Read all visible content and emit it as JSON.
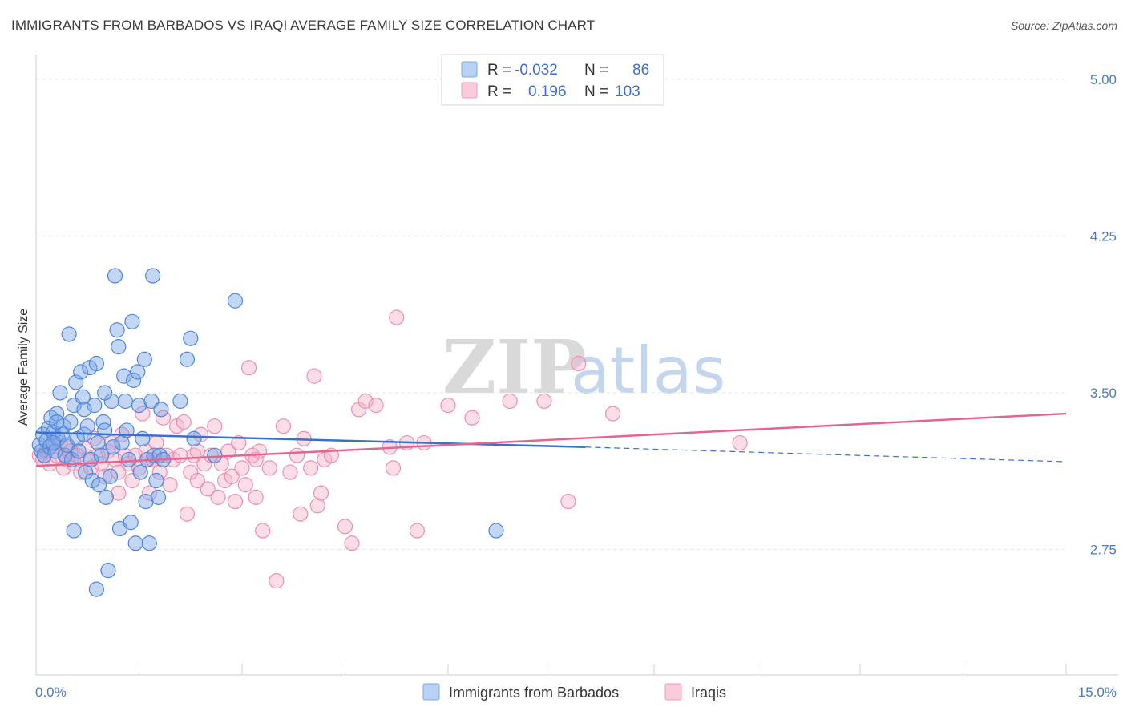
{
  "header": {
    "title": "IMMIGRANTS FROM BARBADOS VS IRAQI AVERAGE FAMILY SIZE CORRELATION CHART",
    "source": "Source: ZipAtlas.com"
  },
  "watermark": {
    "part1": "ZIP",
    "part2": "atlas"
  },
  "legend": {
    "rows": [
      {
        "r_label": "R =",
        "r_value": "-0.032",
        "n_label": "N =",
        "n_value": "86",
        "color": "#7aa7e6"
      },
      {
        "r_label": "R =",
        "r_value": "0.196",
        "n_label": "N =",
        "n_value": "103",
        "color": "#f29ab8"
      }
    ]
  },
  "chart_data": {
    "type": "scatter",
    "ylabel": "Average Family Size",
    "xlim": [
      0,
      15
    ],
    "ylim": [
      2.15,
      5.08
    ],
    "x_tick_labels": [
      "0.0%",
      "15.0%"
    ],
    "y_ticks": [
      2.75,
      3.5,
      4.25,
      5.0
    ],
    "y_tick_labels": [
      "2.75",
      "3.50",
      "4.25",
      "5.00"
    ],
    "grid": true,
    "legend_position": "top-center",
    "series": [
      {
        "name": "Immigrants from Barbados",
        "color": "#7aa7e6",
        "stroke": "#4f86d9",
        "trend": {
          "x0": 0.0,
          "y0": 3.31,
          "x1": 8.0,
          "y1": 3.24,
          "dash_x1": 15.0,
          "dash_y1": 3.17,
          "color": "#3a6fd0"
        },
        "points": [
          [
            0.05,
            3.25
          ],
          [
            0.08,
            3.22
          ],
          [
            0.1,
            3.3
          ],
          [
            0.12,
            3.2
          ],
          [
            0.15,
            3.27
          ],
          [
            0.18,
            3.33
          ],
          [
            0.2,
            3.24
          ],
          [
            0.22,
            3.38
          ],
          [
            0.25,
            3.31
          ],
          [
            0.28,
            3.22
          ],
          [
            0.3,
            3.4
          ],
          [
            0.32,
            3.28
          ],
          [
            0.35,
            3.5
          ],
          [
            0.38,
            3.3
          ],
          [
            0.4,
            3.34
          ],
          [
            0.42,
            3.2
          ],
          [
            0.45,
            3.25
          ],
          [
            0.48,
            3.78
          ],
          [
            0.5,
            3.36
          ],
          [
            0.52,
            3.18
          ],
          [
            0.55,
            3.44
          ],
          [
            0.58,
            3.55
          ],
          [
            0.6,
            3.28
          ],
          [
            0.62,
            3.22
          ],
          [
            0.65,
            3.6
          ],
          [
            0.68,
            3.48
          ],
          [
            0.7,
            3.3
          ],
          [
            0.72,
            3.12
          ],
          [
            0.75,
            3.34
          ],
          [
            0.78,
            3.62
          ],
          [
            0.8,
            3.18
          ],
          [
            0.82,
            3.08
          ],
          [
            0.85,
            3.44
          ],
          [
            0.88,
            3.64
          ],
          [
            0.9,
            3.26
          ],
          [
            0.92,
            3.06
          ],
          [
            0.95,
            3.2
          ],
          [
            0.98,
            3.36
          ],
          [
            1.0,
            3.32
          ],
          [
            1.02,
            3.0
          ],
          [
            1.05,
            2.65
          ],
          [
            1.08,
            3.1
          ],
          [
            1.1,
            3.46
          ],
          [
            1.12,
            3.24
          ],
          [
            1.15,
            4.06
          ],
          [
            1.18,
            3.8
          ],
          [
            1.2,
            3.72
          ],
          [
            1.22,
            2.85
          ],
          [
            1.25,
            3.26
          ],
          [
            1.28,
            3.58
          ],
          [
            1.3,
            3.46
          ],
          [
            1.32,
            3.32
          ],
          [
            1.35,
            3.18
          ],
          [
            1.38,
            2.88
          ],
          [
            1.4,
            3.84
          ],
          [
            1.42,
            3.56
          ],
          [
            1.45,
            2.78
          ],
          [
            1.48,
            3.6
          ],
          [
            1.5,
            3.44
          ],
          [
            1.52,
            3.12
          ],
          [
            1.55,
            3.28
          ],
          [
            1.58,
            3.66
          ],
          [
            1.6,
            2.98
          ],
          [
            1.62,
            3.18
          ],
          [
            1.65,
            2.78
          ],
          [
            1.68,
            3.46
          ],
          [
            1.7,
            4.06
          ],
          [
            1.72,
            3.2
          ],
          [
            1.75,
            3.08
          ],
          [
            1.78,
            3.0
          ],
          [
            1.8,
            3.2
          ],
          [
            1.82,
            3.42
          ],
          [
            1.85,
            3.18
          ],
          [
            2.1,
            3.46
          ],
          [
            2.2,
            3.66
          ],
          [
            2.25,
            3.76
          ],
          [
            2.3,
            3.28
          ],
          [
            2.6,
            3.2
          ],
          [
            2.9,
            3.94
          ],
          [
            0.55,
            2.84
          ],
          [
            0.88,
            2.56
          ],
          [
            0.7,
            3.42
          ],
          [
            1.0,
            3.5
          ],
          [
            6.7,
            2.84
          ],
          [
            0.25,
            3.26
          ],
          [
            0.3,
            3.36
          ]
        ]
      },
      {
        "name": "Iraqis",
        "color": "#f5b3c9",
        "stroke": "#ee8db0",
        "trend": {
          "x0": 0.0,
          "y0": 3.15,
          "x1": 15.0,
          "y1": 3.4,
          "color": "#e8648f"
        },
        "points": [
          [
            0.05,
            3.2
          ],
          [
            0.1,
            3.18
          ],
          [
            0.15,
            3.22
          ],
          [
            0.2,
            3.16
          ],
          [
            0.25,
            3.24
          ],
          [
            0.3,
            3.2
          ],
          [
            0.35,
            3.26
          ],
          [
            0.4,
            3.14
          ],
          [
            0.45,
            3.18
          ],
          [
            0.5,
            3.22
          ],
          [
            0.55,
            3.16
          ],
          [
            0.6,
            3.2
          ],
          [
            0.65,
            3.12
          ],
          [
            0.7,
            3.24
          ],
          [
            0.75,
            3.18
          ],
          [
            0.8,
            3.14
          ],
          [
            0.85,
            3.28
          ],
          [
            0.9,
            3.2
          ],
          [
            0.95,
            3.16
          ],
          [
            1.0,
            3.1
          ],
          [
            1.05,
            3.22
          ],
          [
            1.1,
            3.26
          ],
          [
            1.15,
            3.18
          ],
          [
            1.2,
            3.12
          ],
          [
            1.25,
            3.3
          ],
          [
            1.3,
            3.2
          ],
          [
            1.35,
            3.16
          ],
          [
            1.4,
            3.08
          ],
          [
            1.45,
            3.2
          ],
          [
            1.5,
            3.14
          ],
          [
            1.55,
            3.4
          ],
          [
            1.6,
            3.22
          ],
          [
            1.65,
            3.02
          ],
          [
            1.7,
            3.18
          ],
          [
            1.75,
            3.26
          ],
          [
            1.8,
            3.12
          ],
          [
            1.85,
            3.38
          ],
          [
            1.9,
            3.2
          ],
          [
            1.95,
            3.06
          ],
          [
            2.0,
            3.18
          ],
          [
            2.05,
            3.34
          ],
          [
            2.1,
            3.2
          ],
          [
            2.15,
            3.36
          ],
          [
            2.2,
            2.92
          ],
          [
            2.25,
            3.12
          ],
          [
            2.3,
            3.2
          ],
          [
            2.35,
            3.08
          ],
          [
            2.4,
            3.3
          ],
          [
            2.45,
            3.16
          ],
          [
            2.5,
            3.04
          ],
          [
            2.55,
            3.2
          ],
          [
            2.6,
            3.34
          ],
          [
            2.65,
            3.0
          ],
          [
            2.7,
            3.16
          ],
          [
            2.75,
            3.08
          ],
          [
            2.8,
            3.22
          ],
          [
            2.85,
            3.1
          ],
          [
            2.9,
            2.98
          ],
          [
            2.95,
            3.26
          ],
          [
            3.0,
            3.14
          ],
          [
            3.05,
            3.06
          ],
          [
            3.1,
            3.62
          ],
          [
            3.15,
            3.2
          ],
          [
            3.2,
            3.18
          ],
          [
            3.25,
            3.22
          ],
          [
            3.3,
            2.84
          ],
          [
            3.4,
            3.14
          ],
          [
            3.5,
            2.6
          ],
          [
            3.6,
            3.34
          ],
          [
            3.7,
            3.12
          ],
          [
            3.8,
            3.2
          ],
          [
            3.85,
            2.92
          ],
          [
            3.9,
            3.28
          ],
          [
            4.0,
            3.14
          ],
          [
            4.05,
            3.58
          ],
          [
            4.1,
            2.96
          ],
          [
            4.15,
            3.02
          ],
          [
            4.2,
            3.18
          ],
          [
            4.3,
            3.2
          ],
          [
            4.5,
            2.86
          ],
          [
            4.6,
            2.78
          ],
          [
            4.7,
            3.42
          ],
          [
            4.8,
            3.46
          ],
          [
            4.95,
            3.44
          ],
          [
            5.15,
            3.24
          ],
          [
            5.2,
            3.14
          ],
          [
            5.25,
            3.86
          ],
          [
            5.4,
            3.26
          ],
          [
            5.55,
            2.84
          ],
          [
            5.65,
            3.26
          ],
          [
            6.0,
            3.44
          ],
          [
            6.35,
            3.38
          ],
          [
            6.9,
            3.46
          ],
          [
            7.4,
            3.46
          ],
          [
            7.75,
            2.98
          ],
          [
            7.9,
            3.64
          ],
          [
            8.4,
            3.4
          ],
          [
            10.25,
            3.26
          ],
          [
            1.7,
            3.18
          ],
          [
            2.35,
            3.22
          ],
          [
            0.45,
            3.24
          ],
          [
            1.2,
            3.02
          ],
          [
            3.2,
            3.0
          ]
        ]
      }
    ]
  }
}
